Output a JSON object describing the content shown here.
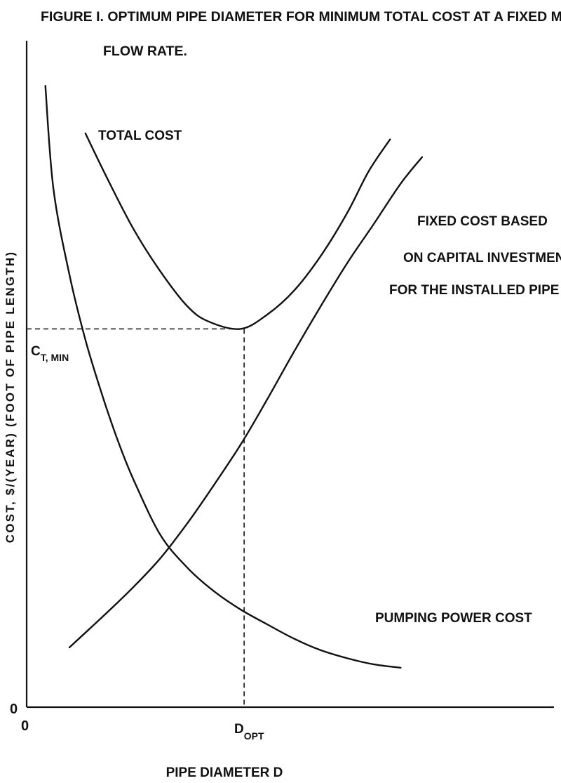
{
  "chart_data": {
    "type": "line",
    "title_line1": "FIGURE I. OPTIMUM PIPE DIAMETER FOR MINIMUM TOTAL COST AT A FIXED MASS",
    "title_line2": "FLOW RATE.",
    "xlabel": "PIPE DIAMETER D",
    "ylabel": "COST, $/(YEAR) (FOOT OF PIPE LENGTH)",
    "x_origin_label": "0",
    "y_origin_label": "0",
    "x_ref_label_main": "D",
    "x_ref_label_sub": "OPT",
    "y_ref_label_main": "C",
    "y_ref_label_sub": "T, MIN",
    "xlim": [
      0,
      100
    ],
    "ylim": [
      0,
      100
    ],
    "grid": false,
    "series": [
      {
        "name": "TOTAL COST",
        "x": [
          11,
          15,
          20,
          25,
          30,
          34,
          40,
          45,
          50,
          55,
          60,
          64,
          68
        ],
        "y": [
          84.5,
          78,
          70.4,
          64.2,
          59.1,
          56.8,
          55.7,
          57.8,
          61.3,
          66.4,
          72.8,
          78.9,
          83.6
        ]
      },
      {
        "name": "FIXED COST BASED|ON CAPITAL INVESTMENT|FOR THE INSTALLED PIPE",
        "x": [
          8,
          15,
          20,
          25,
          30,
          34,
          40,
          45,
          50,
          55,
          60,
          65,
          70,
          74
        ],
        "y": [
          8.8,
          13.9,
          17.7,
          21.9,
          27,
          31.5,
          38.6,
          45.3,
          52.3,
          59,
          65.4,
          71.2,
          77.1,
          81
        ]
      },
      {
        "name": "PUMPING POWER COST",
        "x": [
          3.5,
          5,
          8,
          11,
          14,
          17,
          20,
          25,
          30,
          35,
          40,
          45,
          50,
          55,
          60,
          65,
          70
        ],
        "y": [
          91.5,
          76.4,
          63.7,
          54.1,
          46.3,
          39.4,
          33.5,
          25.4,
          20.6,
          17.1,
          14.4,
          12.2,
          10.1,
          8.4,
          7.2,
          6.3,
          5.8
        ]
      }
    ],
    "reference": {
      "x_opt": 40.7,
      "y_min": 55.7
    }
  }
}
